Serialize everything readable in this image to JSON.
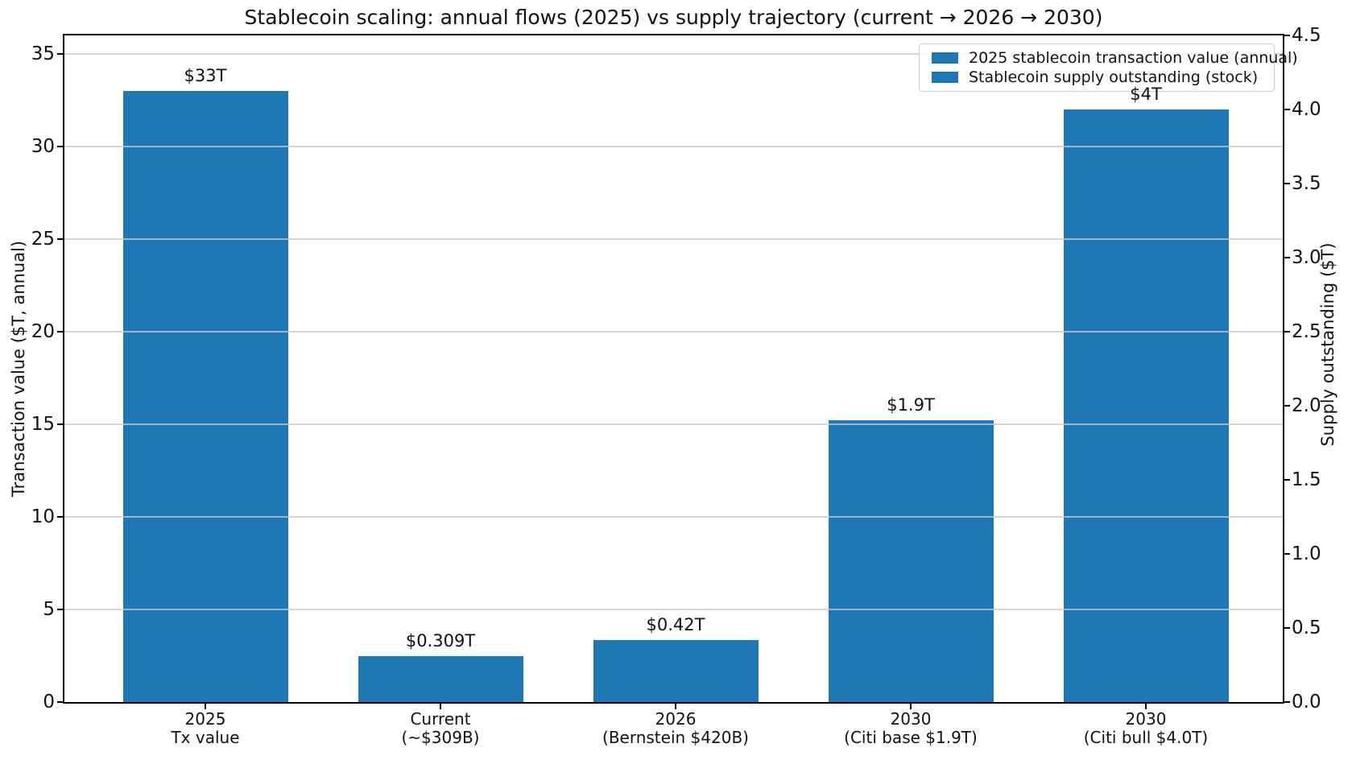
{
  "figure": {
    "title": "Stablecoin scaling: annual flows (2025) vs supply trajectory (current → 2026 → 2030)"
  },
  "chart_data": {
    "type": "bar",
    "title": "Stablecoin scaling: annual flows (2025) vs supply trajectory (current → 2026 → 2030)",
    "bar_color": "#1f77b4",
    "grid": "horizontal gridlines at left-axis major ticks, drawn over bars",
    "left_axis": {
      "label": "Transaction value ($T, annual)",
      "ticks": [
        0,
        5,
        10,
        15,
        20,
        25,
        30,
        35
      ],
      "min": 0,
      "max": 36
    },
    "right_axis": {
      "label": "Supply outstanding ($T)",
      "ticks": [
        "0.0",
        "0.5",
        "1.0",
        "1.5",
        "2.0",
        "2.5",
        "3.0",
        "3.5",
        "4.0",
        "4.5"
      ],
      "min": 0,
      "max": 4.5
    },
    "legend": {
      "position": "upper right",
      "entries": [
        "2025 stablecoin transaction value (annual)",
        "Stablecoin supply outstanding (stock)"
      ]
    },
    "bars": [
      {
        "category_line1": "2025",
        "category_line2": "Tx value",
        "value": 33,
        "axis": "left",
        "label": "$33T",
        "series": "2025 stablecoin transaction value (annual)"
      },
      {
        "category_line1": "Current",
        "category_line2": "(~$309B)",
        "value": 0.309,
        "axis": "right",
        "label": "$0.309T",
        "series": "Stablecoin supply outstanding (stock)"
      },
      {
        "category_line1": "2026",
        "category_line2": "(Bernstein $420B)",
        "value": 0.42,
        "axis": "right",
        "label": "$0.42T",
        "series": "Stablecoin supply outstanding (stock)"
      },
      {
        "category_line1": "2030",
        "category_line2": "(Citi base $1.9T)",
        "value": 1.9,
        "axis": "right",
        "label": "$1.9T",
        "series": "Stablecoin supply outstanding (stock)"
      },
      {
        "category_line1": "2030",
        "category_line2": "(Citi bull $4.0T)",
        "value": 4.0,
        "axis": "right",
        "label": "$4T",
        "series": "Stablecoin supply outstanding (stock)"
      }
    ]
  }
}
